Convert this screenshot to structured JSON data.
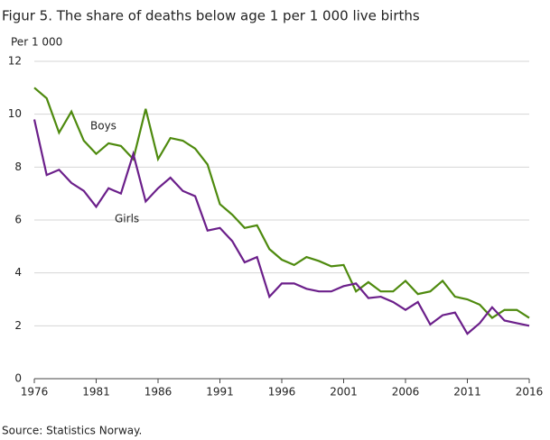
{
  "chart_data": {
    "type": "line",
    "title": "Figur 5. The share of deaths below age 1 per 1 000 live births",
    "y_label": "Per 1 000",
    "source": "Source: Statistics Norway.",
    "x": [
      1976,
      1977,
      1978,
      1979,
      1980,
      1981,
      1982,
      1983,
      1984,
      1985,
      1986,
      1987,
      1988,
      1989,
      1990,
      1991,
      1992,
      1993,
      1994,
      1995,
      1996,
      1997,
      1998,
      1999,
      2000,
      2001,
      2002,
      2003,
      2004,
      2005,
      2006,
      2007,
      2008,
      2009,
      2010,
      2011,
      2012,
      2013,
      2014,
      2015,
      2016
    ],
    "series": [
      {
        "name": "Boys",
        "color": "#4e8a0e",
        "values": [
          11.0,
          10.6,
          9.3,
          10.1,
          9.0,
          8.5,
          8.9,
          8.8,
          8.3,
          10.2,
          8.3,
          9.1,
          9.0,
          8.7,
          8.1,
          6.6,
          6.2,
          5.7,
          5.8,
          4.9,
          4.5,
          4.3,
          4.6,
          4.45,
          4.25,
          4.3,
          3.3,
          3.65,
          3.3,
          3.3,
          3.7,
          3.2,
          3.3,
          3.7,
          3.1,
          3.0,
          2.8,
          2.3,
          2.6,
          2.6,
          2.3
        ]
      },
      {
        "name": "Girls",
        "color": "#6b1f8a",
        "values": [
          9.8,
          7.7,
          7.9,
          7.4,
          7.1,
          6.5,
          7.2,
          7.0,
          8.5,
          6.7,
          7.2,
          7.6,
          7.1,
          6.9,
          5.6,
          5.7,
          5.2,
          4.4,
          4.6,
          3.1,
          3.6,
          3.6,
          3.4,
          3.3,
          3.3,
          3.5,
          3.6,
          3.05,
          3.1,
          2.9,
          2.6,
          2.9,
          2.05,
          2.4,
          2.5,
          1.7,
          2.1,
          2.7,
          2.2,
          2.1,
          2.0
        ]
      }
    ],
    "xlim": [
      1976,
      2016
    ],
    "xticks": [
      1976,
      1981,
      1986,
      1991,
      1996,
      2001,
      2006,
      2011,
      2016
    ],
    "ylim": [
      0,
      12
    ],
    "yticks": [
      0,
      2,
      4,
      6,
      8,
      10,
      12
    ],
    "grid": true
  }
}
